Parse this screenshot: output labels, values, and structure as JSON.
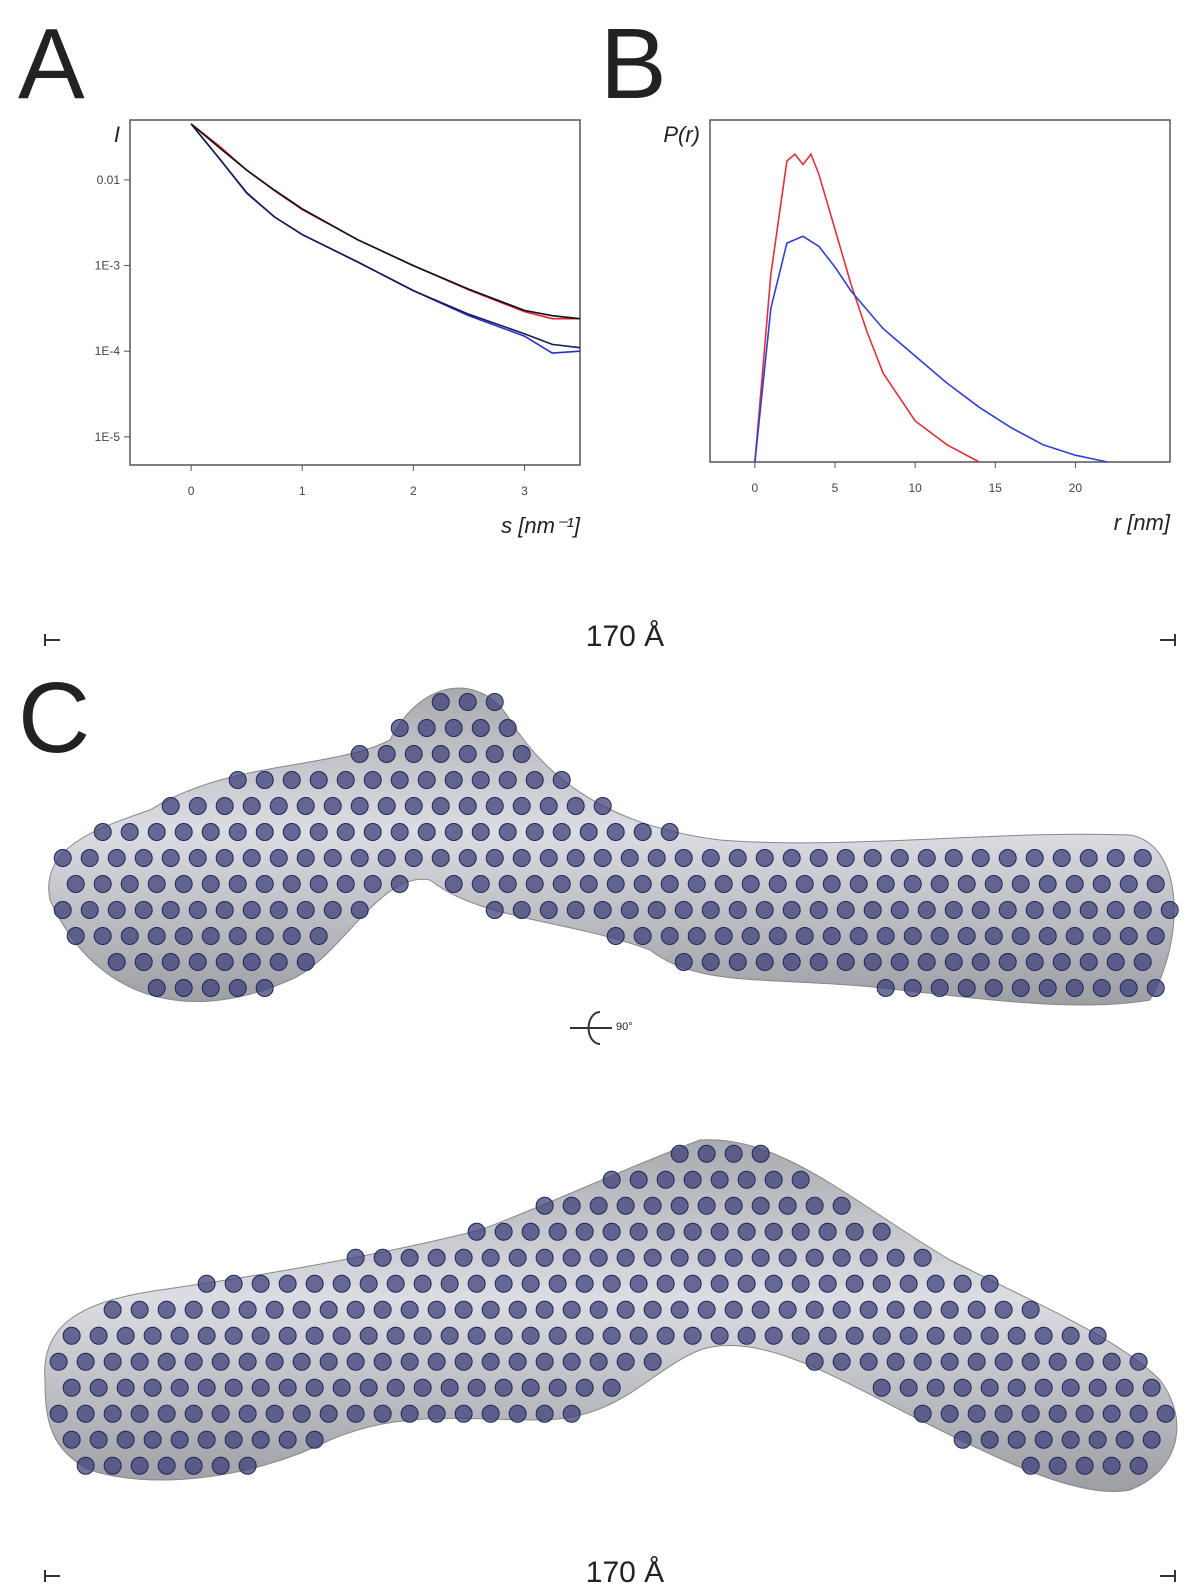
{
  "panels": {
    "a": "A",
    "b": "B",
    "c": "C"
  },
  "chart_data": [
    {
      "type": "line",
      "ylabel": "I",
      "xlabel": "s [nm⁻¹]",
      "x": [
        0,
        0.25,
        0.5,
        0.75,
        1,
        1.5,
        2,
        2.5,
        3,
        3.25,
        3.5
      ],
      "xlim": [
        -0.55,
        3.5
      ],
      "xticks": [
        0,
        1,
        2,
        3
      ],
      "ylog": true,
      "ylim": [
        4.7e-06,
        0.05
      ],
      "yticks": [
        {
          "value": 0.01,
          "label": "0.01"
        },
        {
          "value": 0.001,
          "label": "1E-3"
        },
        {
          "value": 0.0001,
          "label": "1E-4"
        },
        {
          "value": 1e-05,
          "label": "1E-5"
        }
      ],
      "series": [
        {
          "color": "#e0202a",
          "values": [
            0.045,
            0.025,
            0.013,
            0.0075,
            0.0045,
            0.002,
            0.001,
            0.00052,
            0.00029,
            0.00024,
            0.00024
          ]
        },
        {
          "color": "#111111",
          "values": [
            0.045,
            0.024,
            0.013,
            0.0076,
            0.0046,
            0.002,
            0.001,
            0.00053,
            0.0003,
            0.00026,
            0.00024
          ]
        },
        {
          "color": "#2030d0",
          "values": [
            0.045,
            0.018,
            0.007,
            0.0037,
            0.0023,
            0.0011,
            0.00051,
            0.00026,
            0.00015,
            9.5e-05,
            0.0001
          ]
        },
        {
          "color": "#1a1a50",
          "values": [
            0.045,
            0.018,
            0.0071,
            0.0037,
            0.0023,
            0.0011,
            0.00051,
            0.00027,
            0.00016,
            0.00012,
            0.00011
          ]
        }
      ]
    },
    {
      "type": "line",
      "ylabel": "P(r)",
      "xlabel": "r [nm]",
      "xlim": [
        -2.8,
        25.9
      ],
      "xticks": [
        0,
        5,
        10,
        15,
        20
      ],
      "ylim": [
        0,
        1
      ],
      "series": [
        {
          "color": "#e0303a",
          "x": [
            0,
            1,
            2,
            2.5,
            3,
            3.5,
            4,
            5,
            6,
            7,
            8,
            10,
            12,
            14
          ],
          "values": [
            0,
            0.55,
            0.88,
            0.9,
            0.87,
            0.9,
            0.84,
            0.68,
            0.52,
            0.38,
            0.26,
            0.12,
            0.05,
            0
          ]
        },
        {
          "color": "#3040d0",
          "x": [
            0,
            1,
            2,
            3,
            4,
            5,
            6,
            8,
            10,
            12,
            14,
            16,
            18,
            20,
            22
          ],
          "values": [
            0,
            0.45,
            0.64,
            0.66,
            0.63,
            0.57,
            0.5,
            0.39,
            0.31,
            0.23,
            0.16,
            0.1,
            0.05,
            0.02,
            0
          ]
        }
      ]
    }
  ],
  "model": {
    "scale_top": "170 Å",
    "rotation": "90°",
    "scale_bottom": "170 Å"
  }
}
